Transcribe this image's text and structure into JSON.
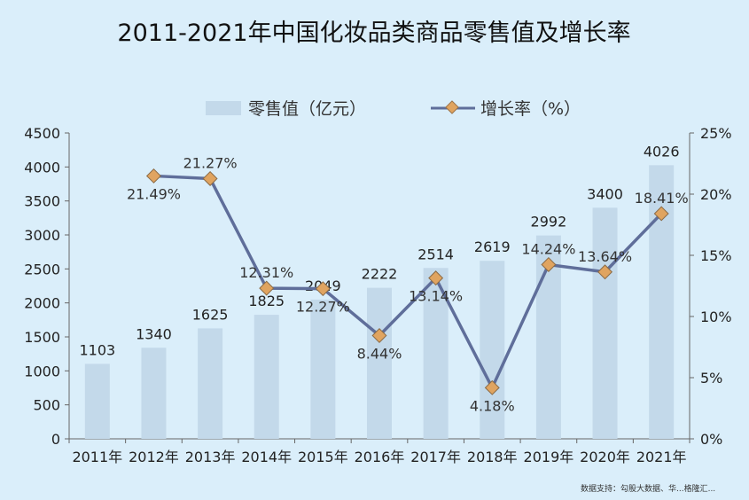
{
  "chart_data": {
    "type": "bar",
    "title": "2011-2021年中国化妆品类商品零售值及增长率",
    "categories": [
      "2011年",
      "2012年",
      "2013年",
      "2014年",
      "2015年",
      "2016年",
      "2017年",
      "2018年",
      "2019年",
      "2020年",
      "2021年"
    ],
    "series": [
      {
        "name": "零售值（亿元）",
        "type": "bar",
        "axis": "left",
        "values": [
          1103,
          1340,
          1625,
          1825,
          2049,
          2222,
          2514,
          2619,
          2992,
          3400,
          4026
        ],
        "labels": [
          "1103",
          "1340",
          "1625",
          "1825",
          "2049",
          "2222",
          "2514",
          "2619",
          "2992",
          "3400",
          "4026"
        ]
      },
      {
        "name": "增长率（%）",
        "type": "line",
        "axis": "right",
        "values": [
          null,
          21.49,
          21.27,
          12.31,
          12.27,
          8.44,
          13.14,
          4.18,
          14.24,
          13.64,
          18.41
        ],
        "labels": [
          "",
          "21.49%",
          "21.27%",
          "12.31%",
          "12.27%",
          "8.44%",
          "13.14%",
          "4.18%",
          "14.24%",
          "13.64%",
          "18.41%"
        ]
      }
    ],
    "y_left": {
      "range": [
        0,
        4500
      ],
      "ticks": [
        "0",
        "500",
        "1000",
        "1500",
        "2000",
        "2500",
        "3000",
        "3500",
        "4000",
        "4500"
      ]
    },
    "y_right": {
      "range": [
        0,
        25
      ],
      "ticks": [
        "0%",
        "5%",
        "10%",
        "15%",
        "20%",
        "25%"
      ]
    },
    "legend_position": "top-center",
    "grid": false,
    "colors": {
      "bar": "#c3d9ea",
      "line": "#5f6e9a",
      "marker": "#e0a460",
      "background": "#daeefa"
    }
  },
  "source": "数据支持：勾股大数据、华...格隆汇..."
}
